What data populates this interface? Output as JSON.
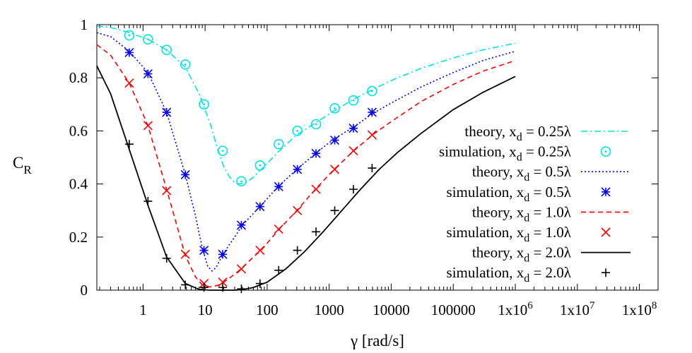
{
  "chart_data": {
    "type": "line",
    "xscale": "log",
    "xlim": [
      0.18,
      200000000
    ],
    "ylim": [
      0,
      1
    ],
    "ylabel": "C",
    "ylabel_sub": "R",
    "xlabel": "γ [rad/s]",
    "x_ticks": [
      1,
      10,
      100,
      1000,
      10000,
      100000,
      1000000,
      10000000,
      100000000
    ],
    "x_tick_labels": [
      {
        "text": "1"
      },
      {
        "text": "10"
      },
      {
        "text": "100"
      },
      {
        "text": "1000"
      },
      {
        "text": "10000"
      },
      {
        "text": "100000"
      },
      {
        "text": "1x10",
        "sup": "6"
      },
      {
        "text": "1x10",
        "sup": "7"
      },
      {
        "text": "1x10",
        "sup": "8"
      }
    ],
    "y_ticks": [
      0,
      0.2,
      0.4,
      0.6,
      0.8,
      1
    ],
    "y_tick_labels": [
      "0",
      "0.2",
      "0.4",
      "0.6",
      "0.8",
      "1"
    ],
    "grid": false,
    "legend_position": "right",
    "series": [
      {
        "name": "theory, x_d = 0.25λ",
        "label_main": "theory, x",
        "label_sub": "d",
        "label_tail": " = 0.25λ",
        "kind": "line",
        "style": "dashdot",
        "color": "#00e5e5",
        "x": [
          0.18,
          0.3,
          0.6,
          1.2,
          2.4,
          4.8,
          8,
          12,
          16,
          20,
          25,
          30,
          36,
          45,
          60,
          80,
          150,
          300,
          600,
          1200,
          2500,
          5000,
          10000,
          30000,
          100000,
          300000,
          1000000
        ],
        "y": [
          0.995,
          0.99,
          0.97,
          0.945,
          0.905,
          0.84,
          0.74,
          0.63,
          0.53,
          0.465,
          0.425,
          0.405,
          0.4,
          0.405,
          0.425,
          0.455,
          0.52,
          0.585,
          0.63,
          0.675,
          0.72,
          0.755,
          0.79,
          0.835,
          0.875,
          0.905,
          0.93
        ]
      },
      {
        "name": "simulation, x_d = 0.25λ",
        "label_main": "simulation, x",
        "label_sub": "d",
        "label_tail": " = 0.25λ",
        "kind": "marker",
        "marker": "circle",
        "color": "#00e5e5",
        "x": [
          0.6,
          1.2,
          2.4,
          4.8,
          9.6,
          19.2,
          38.4,
          76.8,
          153.6,
          307,
          614,
          1229,
          2458,
          4915
        ],
        "y": [
          0.96,
          0.945,
          0.905,
          0.85,
          0.7,
          0.525,
          0.41,
          0.47,
          0.55,
          0.6,
          0.625,
          0.685,
          0.715,
          0.75
        ]
      },
      {
        "name": "theory, x_d = 0.5λ",
        "label_main": "theory, x",
        "label_sub": "d",
        "label_tail": " = 0.5λ",
        "kind": "line",
        "style": "dotted",
        "color": "#0000ff",
        "x": [
          0.18,
          0.3,
          0.6,
          1.2,
          2.4,
          4.8,
          7,
          9,
          11,
          13,
          15,
          18,
          22,
          30,
          40,
          80,
          150,
          300,
          600,
          1200,
          2500,
          5000,
          10000,
          30000,
          100000,
          300000,
          1000000
        ],
        "y": [
          0.97,
          0.955,
          0.9,
          0.82,
          0.67,
          0.435,
          0.28,
          0.16,
          0.09,
          0.072,
          0.085,
          0.12,
          0.155,
          0.2,
          0.245,
          0.32,
          0.39,
          0.455,
          0.515,
          0.57,
          0.615,
          0.665,
          0.705,
          0.765,
          0.82,
          0.865,
          0.9
        ]
      },
      {
        "name": "simulation, x_d = 0.5λ",
        "label_main": "simulation, x",
        "label_sub": "d",
        "label_tail": " = 0.5λ",
        "kind": "marker",
        "marker": "star",
        "color": "#0000ff",
        "x": [
          0.6,
          1.2,
          2.4,
          4.8,
          9.6,
          19.2,
          38.4,
          76.8,
          153.6,
          307,
          614,
          1229,
          2458,
          4915
        ],
        "y": [
          0.895,
          0.815,
          0.67,
          0.435,
          0.15,
          0.135,
          0.245,
          0.315,
          0.39,
          0.455,
          0.515,
          0.565,
          0.61,
          0.67
        ]
      },
      {
        "name": "theory, x_d = 1.0λ",
        "label_main": "theory, x",
        "label_sub": "d",
        "label_tail": " = 1.0λ",
        "kind": "line",
        "style": "dashed",
        "color": "#ff0000",
        "x": [
          0.18,
          0.3,
          0.6,
          1.2,
          2.4,
          4.8,
          7,
          9,
          12,
          16,
          20,
          30,
          40,
          60,
          80,
          150,
          300,
          600,
          1200,
          2500,
          5000,
          10000,
          30000,
          100000,
          300000,
          1000000
        ],
        "y": [
          0.925,
          0.885,
          0.78,
          0.62,
          0.38,
          0.13,
          0.05,
          0.02,
          0.012,
          0.018,
          0.03,
          0.06,
          0.085,
          0.125,
          0.15,
          0.225,
          0.3,
          0.38,
          0.455,
          0.525,
          0.585,
          0.635,
          0.71,
          0.775,
          0.825,
          0.865
        ]
      },
      {
        "name": "simulation, x_d = 1.0λ",
        "label_main": "simulation, x",
        "label_sub": "d",
        "label_tail": " = 1.0λ",
        "kind": "marker",
        "marker": "x",
        "color": "#ff0000",
        "x": [
          0.6,
          1.2,
          2.4,
          4.8,
          9.6,
          19.2,
          38.4,
          76.8,
          153.6,
          307,
          614,
          1229,
          2458,
          4915
        ],
        "y": [
          0.78,
          0.62,
          0.375,
          0.135,
          0.025,
          0.03,
          0.08,
          0.15,
          0.23,
          0.3,
          0.38,
          0.455,
          0.525,
          0.585
        ]
      },
      {
        "name": "theory, x_d = 2.0λ",
        "label_main": "theory, x",
        "label_sub": "d",
        "label_tail": " = 2.0λ",
        "kind": "line",
        "style": "solid",
        "color": "#000000",
        "x": [
          0.18,
          0.3,
          0.6,
          1.2,
          2.4,
          4.8,
          8,
          12,
          16,
          20,
          30,
          40,
          60,
          100,
          200,
          400,
          800,
          1600,
          3200,
          6400,
          12800,
          30000,
          100000,
          300000,
          1000000
        ],
        "y": [
          0.845,
          0.74,
          0.53,
          0.32,
          0.125,
          0.025,
          0.003,
          0.0,
          0.0,
          0.0,
          0.0,
          0.002,
          0.01,
          0.03,
          0.08,
          0.145,
          0.22,
          0.3,
          0.38,
          0.455,
          0.52,
          0.59,
          0.68,
          0.745,
          0.805
        ]
      },
      {
        "name": "simulation, x_d = 2.0λ",
        "label_main": "simulation, x",
        "label_sub": "d",
        "label_tail": " = 2.0λ",
        "kind": "marker",
        "marker": "plus",
        "color": "#000000",
        "x": [
          0.6,
          1.2,
          2.4,
          4.8,
          9.6,
          19.2,
          38.4,
          76.8,
          153.6,
          307,
          614,
          1229,
          2458,
          4915
        ],
        "y": [
          0.55,
          0.335,
          0.12,
          0.02,
          0.01,
          0.01,
          0.005,
          0.025,
          0.075,
          0.15,
          0.22,
          0.3,
          0.38,
          0.46
        ]
      }
    ]
  }
}
